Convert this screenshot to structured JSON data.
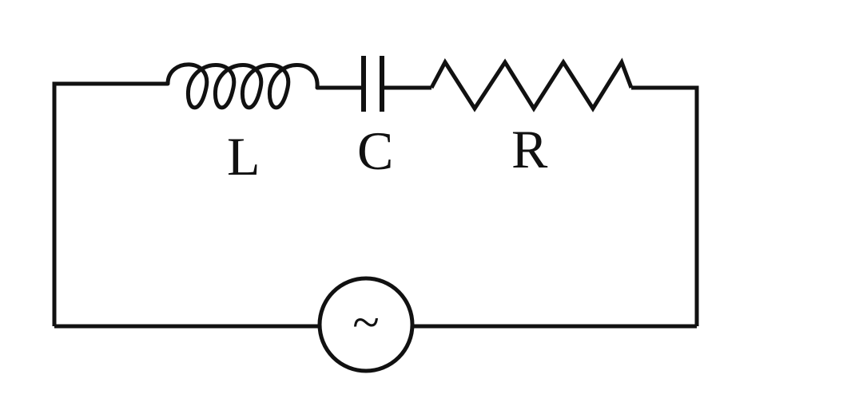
{
  "components": {
    "inductor": {
      "label": "L"
    },
    "capacitor": {
      "label": "C"
    },
    "resistor": {
      "label": "R"
    },
    "source": {
      "symbol": "~"
    }
  },
  "colors": {
    "stroke": "#111111",
    "background": "#ffffff"
  }
}
